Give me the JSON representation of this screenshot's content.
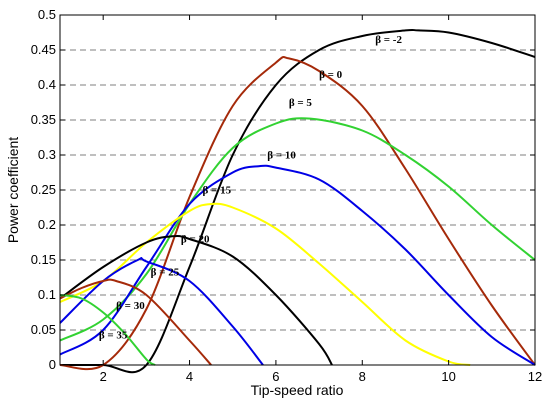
{
  "chart_data": {
    "type": "line",
    "title": "",
    "xlabel": "Tip-speed ratio",
    "ylabel": "Power coefficient",
    "xlim": [
      1,
      12
    ],
    "ylim": [
      0,
      0.5
    ],
    "xticks": [
      "2",
      "4",
      "6",
      "8",
      "10",
      "12"
    ],
    "yticks": [
      "0",
      "0.05",
      "0.1",
      "0.15",
      "0.2",
      "0.25",
      "0.3",
      "0.35",
      "0.4",
      "0.45",
      "0.5"
    ],
    "grid": "horizontal dashed",
    "series": [
      {
        "name": "β = -2",
        "color": "#000000",
        "x": [
          1,
          2,
          3,
          4,
          5,
          6,
          7,
          8,
          9,
          9.3,
          10,
          11,
          12
        ],
        "y": [
          0.0,
          0.0,
          0.0,
          0.14,
          0.3,
          0.4,
          0.45,
          0.47,
          0.478,
          0.478,
          0.475,
          0.46,
          0.44
        ]
      },
      {
        "name": "β = 0",
        "color": "#a52a0a",
        "x": [
          1,
          2,
          3,
          4,
          5,
          6,
          6.3,
          7,
          8,
          9,
          10,
          11,
          12
        ],
        "y": [
          0.0,
          0.0,
          0.08,
          0.24,
          0.37,
          0.432,
          0.438,
          0.42,
          0.37,
          0.28,
          0.18,
          0.085,
          0.0
        ]
      },
      {
        "name": "β = 5",
        "color": "#32d232",
        "x": [
          1,
          2,
          3,
          4,
          5,
          6,
          6.8,
          8,
          9,
          10,
          11,
          12
        ],
        "y": [
          0.035,
          0.065,
          0.13,
          0.23,
          0.31,
          0.345,
          0.352,
          0.335,
          0.3,
          0.255,
          0.2,
          0.15
        ]
      },
      {
        "name": "β = 10",
        "color": "#0000e6",
        "x": [
          1,
          2,
          3,
          4,
          5,
          5.6,
          6,
          7,
          8,
          9,
          10,
          11,
          12
        ],
        "y": [
          0.015,
          0.05,
          0.14,
          0.23,
          0.275,
          0.284,
          0.282,
          0.265,
          0.22,
          0.165,
          0.1,
          0.04,
          0.0
        ]
      },
      {
        "name": "β = 15",
        "color": "#ffff00",
        "x": [
          1,
          2,
          3,
          4,
          4.5,
          5,
          6,
          7,
          8,
          9,
          10,
          10.5
        ],
        "y": [
          0.09,
          0.12,
          0.175,
          0.22,
          0.23,
          0.225,
          0.195,
          0.145,
          0.09,
          0.035,
          0.005,
          0.0
        ]
      },
      {
        "name": "β = 20",
        "color": "#000000",
        "x": [
          1,
          2,
          3,
          3.6,
          4,
          5,
          6,
          7,
          7.3
        ],
        "y": [
          0.095,
          0.14,
          0.175,
          0.184,
          0.18,
          0.155,
          0.1,
          0.03,
          0.0
        ]
      },
      {
        "name": "β = 25",
        "color": "#0000e6",
        "x": [
          1,
          2,
          2.8,
          3,
          4,
          5,
          5.7
        ],
        "y": [
          0.06,
          0.12,
          0.15,
          0.148,
          0.12,
          0.055,
          0.0
        ]
      },
      {
        "name": "β = 30",
        "color": "#a52a0a",
        "x": [
          1,
          1.5,
          2,
          2.3,
          3,
          4,
          4.5
        ],
        "y": [
          0.095,
          0.11,
          0.12,
          0.12,
          0.1,
          0.035,
          0.0
        ]
      },
      {
        "name": "β = 35",
        "color": "#32d232",
        "x": [
          1,
          1.5,
          2,
          2.5,
          3,
          3.2
        ],
        "y": [
          0.1,
          0.095,
          0.075,
          0.045,
          0.008,
          0.0
        ]
      }
    ]
  }
}
